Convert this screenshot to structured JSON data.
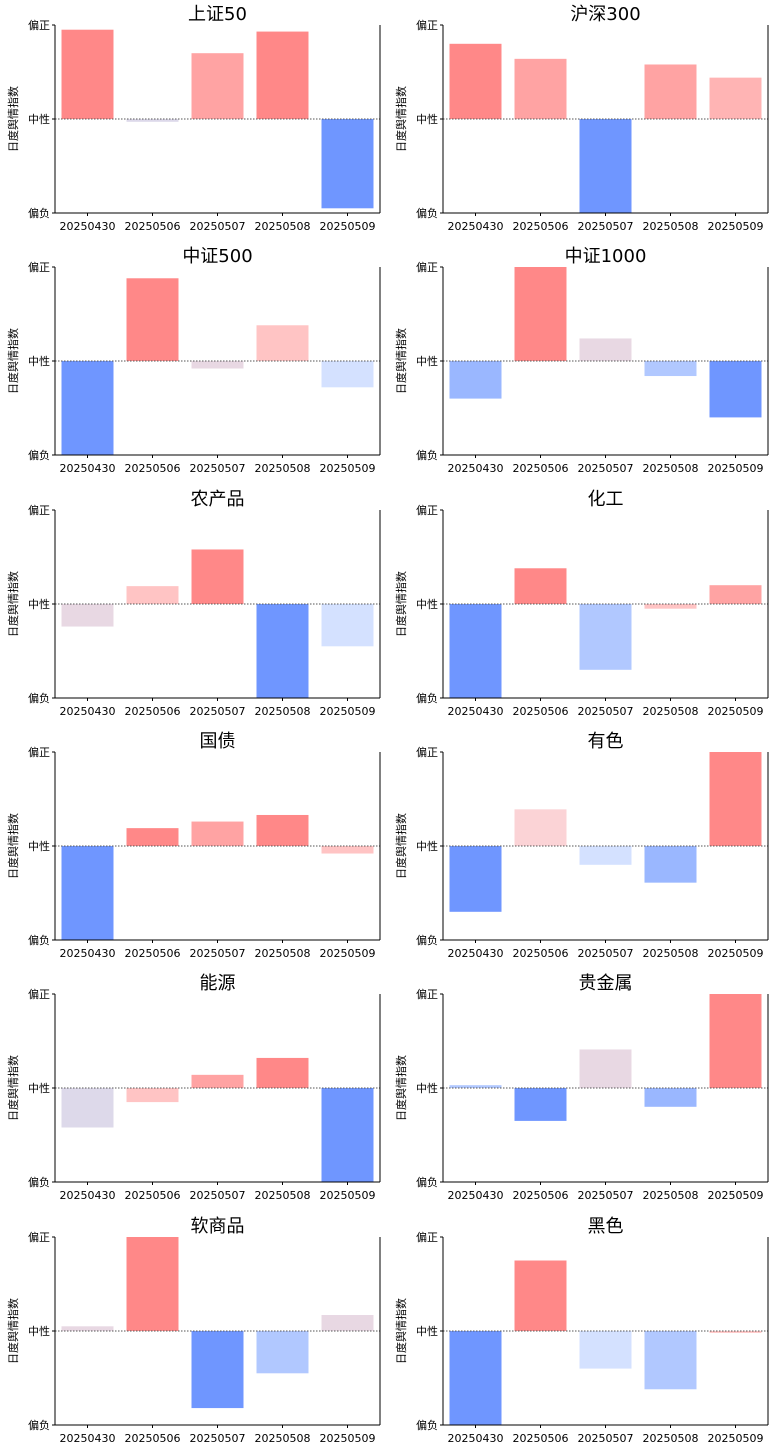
{
  "y_axis_label": "日度舆情指数",
  "y_ticks": {
    "top": "偏正",
    "mid": "中性",
    "bottom": "偏负"
  },
  "colors": {
    "strong_pos": "#ff8888",
    "mid_pos": "#ffa3a3",
    "light_pos": "#ffc4c4",
    "pale_pos": "#fbd3d6",
    "lavender": "#e8d8e3",
    "grayish": "#ddd9ea",
    "strong_neg": "#6f96ff",
    "mid_neg": "#9ab7ff",
    "light_neg": "#b1c8ff",
    "pale_neg": "#d4e1ff"
  },
  "chart_data": [
    {
      "type": "bar",
      "title": "上证50",
      "categories": [
        "20250430",
        "20250506",
        "20250507",
        "20250508",
        "20250509"
      ],
      "values": [
        0.95,
        -0.03,
        0.7,
        0.93,
        -0.95
      ],
      "colors": [
        "#ff8888",
        "#ddd9ea",
        "#ffa3a3",
        "#ff8888",
        "#6f96ff"
      ],
      "ylim": [
        -1,
        1
      ]
    },
    {
      "type": "bar",
      "title": "沪深300",
      "categories": [
        "20250430",
        "20250506",
        "20250507",
        "20250508",
        "20250509"
      ],
      "values": [
        0.8,
        0.64,
        -1.0,
        0.58,
        0.44
      ],
      "colors": [
        "#ff8888",
        "#ffa3a3",
        "#6f96ff",
        "#ffa3a3",
        "#ffb4b4"
      ],
      "ylim": [
        -1,
        1
      ]
    },
    {
      "type": "bar",
      "title": "中证500",
      "categories": [
        "20250430",
        "20250506",
        "20250507",
        "20250508",
        "20250509"
      ],
      "values": [
        -1.0,
        0.88,
        -0.08,
        0.38,
        -0.28
      ],
      "colors": [
        "#6f96ff",
        "#ff8888",
        "#e8d8e3",
        "#ffc4c4",
        "#d4e1ff"
      ],
      "ylim": [
        -1,
        1
      ]
    },
    {
      "type": "bar",
      "title": "中证1000",
      "categories": [
        "20250430",
        "20250506",
        "20250507",
        "20250508",
        "20250509"
      ],
      "values": [
        -0.4,
        1.0,
        0.24,
        -0.16,
        -0.6
      ],
      "colors": [
        "#9ab7ff",
        "#ff8888",
        "#e8d8e3",
        "#b1c8ff",
        "#6f96ff"
      ],
      "ylim": [
        -1,
        1
      ]
    },
    {
      "type": "bar",
      "title": "农产品",
      "categories": [
        "20250430",
        "20250506",
        "20250507",
        "20250508",
        "20250509"
      ],
      "values": [
        -0.24,
        0.19,
        0.58,
        -1.0,
        -0.45
      ],
      "colors": [
        "#e8d8e3",
        "#ffc4c4",
        "#ff8888",
        "#6f96ff",
        "#d4e1ff"
      ],
      "ylim": [
        -1,
        1
      ]
    },
    {
      "type": "bar",
      "title": "化工",
      "categories": [
        "20250430",
        "20250506",
        "20250507",
        "20250508",
        "20250509"
      ],
      "values": [
        -1.0,
        0.38,
        -0.7,
        -0.05,
        0.2
      ],
      "colors": [
        "#6f96ff",
        "#ff8888",
        "#b1c8ff",
        "#ffc4c4",
        "#ffa3a3"
      ],
      "ylim": [
        -1,
        1
      ]
    },
    {
      "type": "bar",
      "title": "国债",
      "categories": [
        "20250430",
        "20250506",
        "20250507",
        "20250508",
        "20250509"
      ],
      "values": [
        -1.0,
        0.19,
        0.26,
        0.33,
        -0.08
      ],
      "colors": [
        "#6f96ff",
        "#ff8888",
        "#ffa3a3",
        "#ff8888",
        "#ffc4c4"
      ],
      "ylim": [
        -1,
        1
      ]
    },
    {
      "type": "bar",
      "title": "有色",
      "categories": [
        "20250430",
        "20250506",
        "20250507",
        "20250508",
        "20250509"
      ],
      "values": [
        -0.7,
        0.39,
        -0.2,
        -0.39,
        1.0
      ],
      "colors": [
        "#6f96ff",
        "#fbd3d6",
        "#d4e1ff",
        "#9ab7ff",
        "#ff8888"
      ],
      "ylim": [
        -1,
        1
      ]
    },
    {
      "type": "bar",
      "title": "能源",
      "categories": [
        "20250430",
        "20250506",
        "20250507",
        "20250508",
        "20250509"
      ],
      "values": [
        -0.42,
        -0.15,
        0.14,
        0.32,
        -1.0
      ],
      "colors": [
        "#ddd9ea",
        "#ffc4c4",
        "#ffa3a3",
        "#ff8888",
        "#6f96ff"
      ],
      "ylim": [
        -1,
        1
      ]
    },
    {
      "type": "bar",
      "title": "贵金属",
      "categories": [
        "20250430",
        "20250506",
        "20250507",
        "20250508",
        "20250509"
      ],
      "values": [
        0.03,
        -0.35,
        0.41,
        -0.2,
        1.0
      ],
      "colors": [
        "#b1c8ff",
        "#6f96ff",
        "#e8d8e3",
        "#9ab7ff",
        "#ff8888"
      ],
      "ylim": [
        -1,
        1
      ]
    },
    {
      "type": "bar",
      "title": "软商品",
      "categories": [
        "20250430",
        "20250506",
        "20250507",
        "20250508",
        "20250509"
      ],
      "values": [
        0.05,
        1.0,
        -0.82,
        -0.45,
        0.17
      ],
      "colors": [
        "#e8d8e3",
        "#ff8888",
        "#6f96ff",
        "#b1c8ff",
        "#e8d8e3"
      ],
      "ylim": [
        -1,
        1
      ]
    },
    {
      "type": "bar",
      "title": "黑色",
      "categories": [
        "20250430",
        "20250506",
        "20250507",
        "20250508",
        "20250509"
      ],
      "values": [
        -1.0,
        0.75,
        -0.4,
        -0.62,
        -0.02
      ],
      "colors": [
        "#6f96ff",
        "#ff8888",
        "#d4e1ff",
        "#b1c8ff",
        "#ffc4c4"
      ],
      "ylim": [
        -1,
        1
      ]
    }
  ]
}
